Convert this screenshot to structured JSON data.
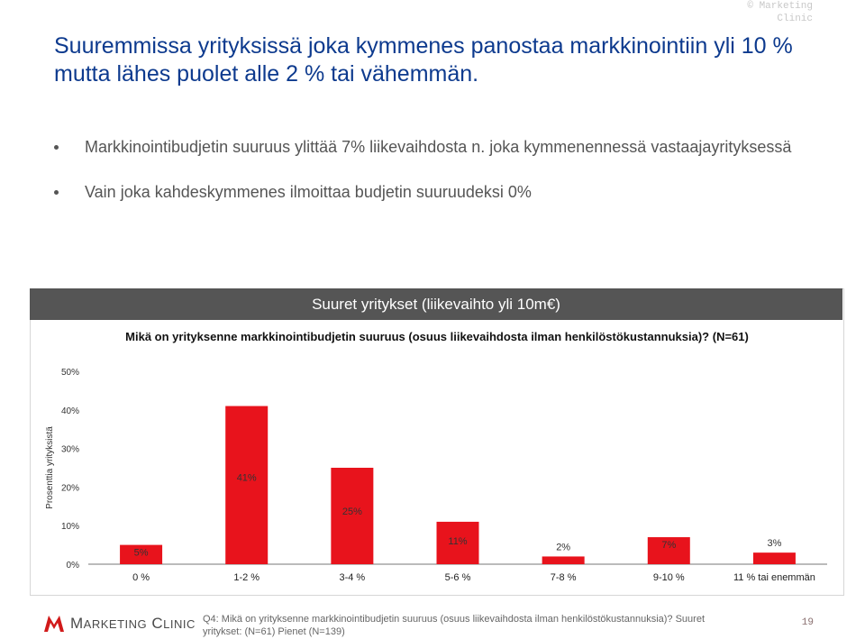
{
  "copyright": "© Marketing Clinic",
  "title": "Suuremmissa yrityksissä joka kymmenes panostaa markkinointiin yli 10 % mutta lähes puolet alle 2 % tai vähemmän.",
  "bullets": [
    "Markkinointibudjetin suuruus ylittää 7% liikevaihdosta n. joka kymmenennessä vastaajayrityksessä",
    "Vain joka kahdeskymmenes ilmoittaa budjetin suuruudeksi 0%"
  ],
  "chart_header": "Suuret yritykset (liikevaihto yli 10m€)",
  "chart_question": "Mikä on yrityksenne markkinointibudjetin suuruus (osuus liikevaihdosta ilman henkilöstökustannuksia)? (N=61)",
  "chart_data": {
    "type": "bar",
    "categories": [
      "0 %",
      "1-2 %",
      "3-4 %",
      "5-6 %",
      "7-8 %",
      "9-10 %",
      "11 % tai enemmän"
    ],
    "values": [
      5,
      41,
      25,
      11,
      2,
      7,
      3
    ],
    "value_labels": [
      "5%",
      "41%",
      "25%",
      "11%",
      "2%",
      "7%",
      "3%"
    ],
    "ylabel": "Prosenttia yrityksistä",
    "yticks": [
      "0%",
      "10%",
      "20%",
      "30%",
      "40%",
      "50%"
    ],
    "ylim": [
      0,
      50
    ],
    "bar_color": "#e8131c",
    "grid": false
  },
  "footer": {
    "logo_text": "Marketing Clinic",
    "note": "Q4: Mikä on yrityksenne markkinointibudjetin suuruus (osuus liikevaihdosta ilman henkilöstökustannuksia)? Suuret yritykset: (N=61) Pienet (N=139)",
    "page": "19"
  }
}
